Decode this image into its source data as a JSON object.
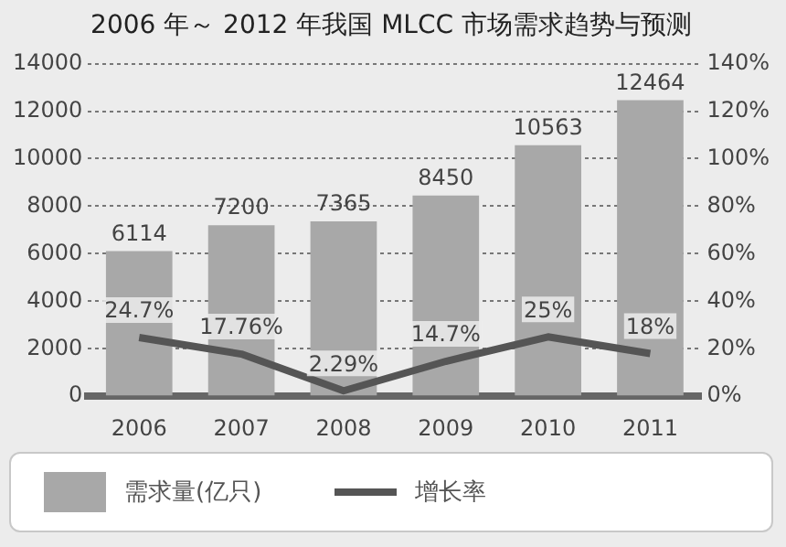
{
  "chart_data": {
    "type": "bar",
    "title": "2006 年～ 2012 年我国 MLCC 市场需求趋势与预测",
    "categories": [
      "2006",
      "2007",
      "2008",
      "2009",
      "2010",
      "2011"
    ],
    "series": [
      {
        "name": "需求量(亿只)",
        "color": "#a8a8a8",
        "values": [
          6114,
          7200,
          7365,
          8450,
          10563,
          12464
        ],
        "value_labels": [
          "6114",
          "7200",
          "7365",
          "8450",
          "10563",
          "12464"
        ]
      },
      {
        "name": "增长率",
        "type": "line",
        "axis": "y2",
        "color": "#555555",
        "values": [
          24.7,
          17.76,
          2.29,
          14.7,
          25,
          18
        ],
        "value_labels": [
          "24.7%",
          "17.76%",
          "2.29%",
          "14.7%",
          "25%",
          "18%"
        ]
      }
    ],
    "ylim": [
      0,
      14000
    ],
    "yticks": [
      0,
      2000,
      4000,
      6000,
      8000,
      10000,
      12000,
      14000
    ],
    "y2lim": [
      0,
      140
    ],
    "y2ticks": [
      {
        "value": 0,
        "label": "0%"
      },
      {
        "value": 20,
        "label": "20%"
      },
      {
        "value": 40,
        "label": "40%"
      },
      {
        "value": 60,
        "label": "60%"
      },
      {
        "value": 80,
        "label": "80%"
      },
      {
        "value": 100,
        "label": "100%"
      },
      {
        "value": 120,
        "label": "120%"
      },
      {
        "value": 140,
        "label": "140%"
      }
    ],
    "grid": "y",
    "legend": "bottom",
    "marker": "none",
    "line_style": "solid"
  }
}
